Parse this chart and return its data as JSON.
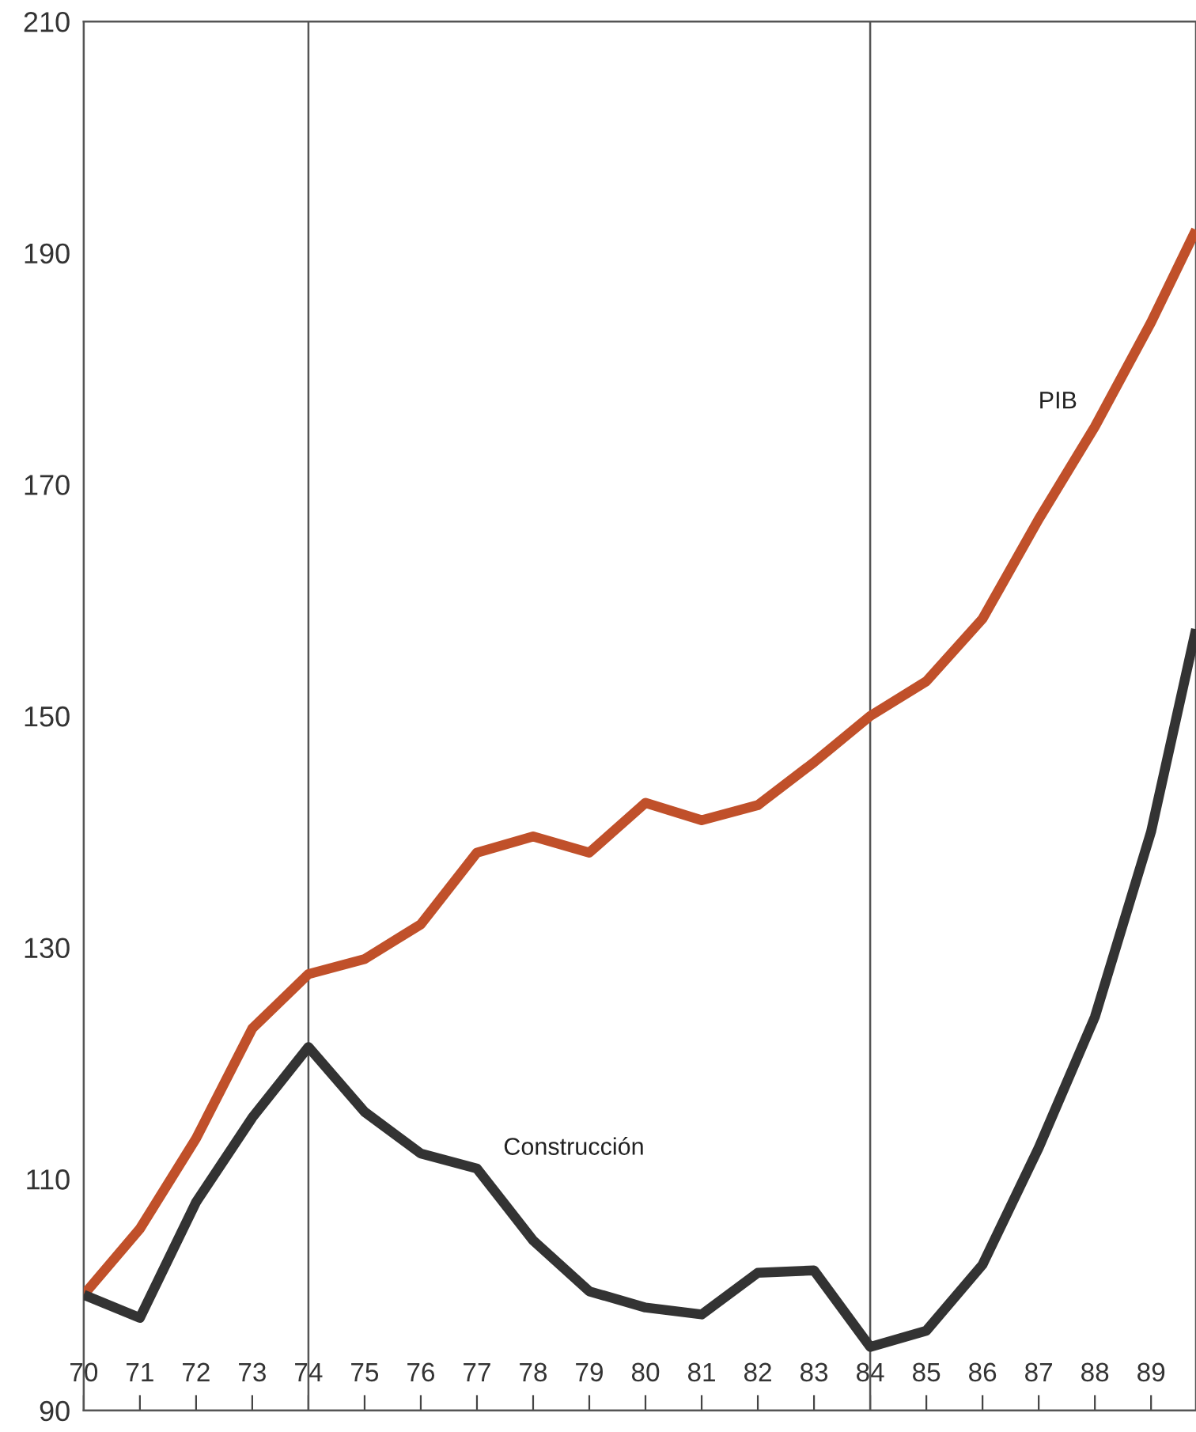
{
  "chart_data": {
    "type": "line",
    "x": [
      70,
      71,
      72,
      73,
      74,
      75,
      76,
      77,
      78,
      79,
      80,
      81,
      82,
      83,
      84,
      85,
      86,
      87,
      88,
      89,
      89.8
    ],
    "series": [
      {
        "color": "#c0502a",
        "values": [
          100,
          105.7,
          113.5,
          123,
          127.7,
          129,
          132,
          138.2,
          139.6,
          138.2,
          142.5,
          141,
          142.3,
          146,
          150,
          153,
          158.4,
          167,
          175,
          184,
          192
        ]
      },
      {
        "color": "#333333",
        "values": [
          100,
          98,
          108,
          115.3,
          121.4,
          115.8,
          112.2,
          110.9,
          104.7,
          100.3,
          98.9,
          98.3,
          101.9,
          102.1,
          95.5,
          96.9,
          102.6,
          112.7,
          124,
          140,
          157.5
        ]
      }
    ],
    "annotations": [
      {
        "text": "PIB",
        "x": 88,
        "y": 175
      },
      {
        "text": "Construcción",
        "x": 77,
        "y": 110.9
      }
    ],
    "xlim": [
      70,
      89.8
    ],
    "xticks": [
      70,
      71,
      72,
      73,
      74,
      75,
      76,
      77,
      78,
      79,
      80,
      81,
      82,
      83,
      84,
      85,
      86,
      87,
      88,
      89
    ],
    "ylim": [
      90,
      210
    ],
    "yticks": [
      90,
      110,
      130,
      150,
      170,
      190,
      210
    ],
    "ref_lines": [
      {
        "axis": "x",
        "value": 74,
        "color": "#555555"
      },
      {
        "axis": "x",
        "value": 84,
        "color": "#555555"
      }
    ],
    "grid": false,
    "legend": false,
    "marker": "none",
    "line_style": "solid"
  }
}
